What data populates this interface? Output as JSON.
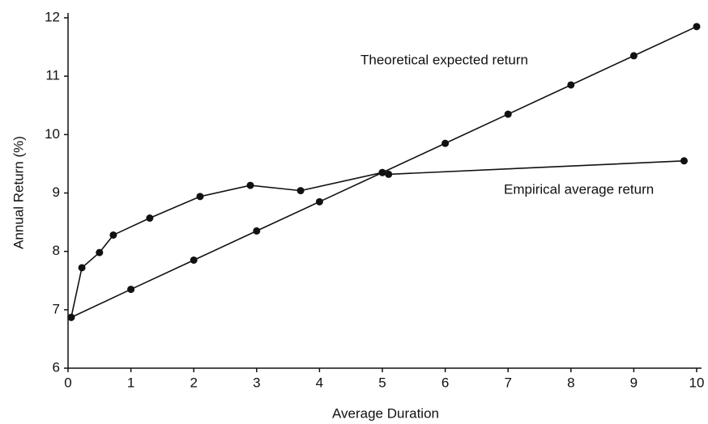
{
  "chart_data": {
    "type": "line",
    "xlabel": "Average Duration",
    "ylabel": "Annual Return (%)",
    "xlim": [
      0,
      10
    ],
    "ylim": [
      6,
      12
    ],
    "xticks": [
      0,
      1,
      2,
      3,
      4,
      5,
      6,
      7,
      8,
      9,
      10
    ],
    "yticks": [
      6,
      7,
      8,
      9,
      10,
      11,
      12
    ],
    "grid": false,
    "series": [
      {
        "name": "Theoretical expected return",
        "color": "#111111",
        "x": [
          0.05,
          1,
          2,
          3,
          4,
          5,
          6,
          7,
          8,
          9,
          10
        ],
        "values": [
          6.87,
          7.35,
          7.85,
          8.35,
          8.85,
          9.35,
          9.85,
          10.35,
          10.85,
          11.35,
          11.85
        ]
      },
      {
        "name": "Empirical average return",
        "color": "#111111",
        "x": [
          0.05,
          0.22,
          0.5,
          0.72,
          1.3,
          2.1,
          2.9,
          3.7,
          5.0,
          5.1,
          9.8
        ],
        "values": [
          6.87,
          7.72,
          7.98,
          8.28,
          8.57,
          8.94,
          9.13,
          9.04,
          9.35,
          9.32,
          9.55
        ]
      }
    ]
  }
}
